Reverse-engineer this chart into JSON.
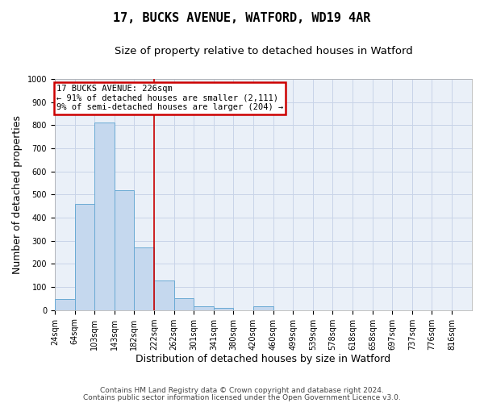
{
  "title": "17, BUCKS AVENUE, WATFORD, WD19 4AR",
  "subtitle": "Size of property relative to detached houses in Watford",
  "xlabel": "Distribution of detached houses by size in Watford",
  "ylabel": "Number of detached properties",
  "footnote1": "Contains HM Land Registry data © Crown copyright and database right 2024.",
  "footnote2": "Contains public sector information licensed under the Open Government Licence v3.0.",
  "annotation_line1": "17 BUCKS AVENUE: 226sqm",
  "annotation_line2": "← 91% of detached houses are smaller (2,111)",
  "annotation_line3": "9% of semi-detached houses are larger (204) →",
  "marker_bin_index": 5,
  "bar_color": "#c5d8ee",
  "bar_edge_color": "#6aaad4",
  "marker_color": "#cc0000",
  "annotation_box_edge_color": "#cc0000",
  "categories": [
    "24sqm",
    "64sqm",
    "103sqm",
    "143sqm",
    "182sqm",
    "222sqm",
    "262sqm",
    "301sqm",
    "341sqm",
    "380sqm",
    "420sqm",
    "460sqm",
    "499sqm",
    "539sqm",
    "578sqm",
    "618sqm",
    "658sqm",
    "697sqm",
    "737sqm",
    "776sqm",
    "816sqm"
  ],
  "bin_edges": [
    24,
    64,
    103,
    143,
    182,
    222,
    262,
    301,
    341,
    380,
    420,
    460,
    499,
    539,
    578,
    618,
    658,
    697,
    737,
    776,
    816
  ],
  "values": [
    48,
    460,
    812,
    520,
    270,
    128,
    52,
    16,
    10,
    0,
    15,
    0,
    0,
    0,
    0,
    0,
    0,
    0,
    0,
    0
  ],
  "ylim": [
    0,
    1000
  ],
  "yticks": [
    0,
    100,
    200,
    300,
    400,
    500,
    600,
    700,
    800,
    900,
    1000
  ],
  "grid_color": "#c8d4e8",
  "background_color": "#eaf0f8",
  "title_fontsize": 11,
  "subtitle_fontsize": 9.5,
  "axis_label_fontsize": 9,
  "tick_fontsize": 7,
  "annotation_fontsize": 7.5,
  "footnote_fontsize": 6.5
}
